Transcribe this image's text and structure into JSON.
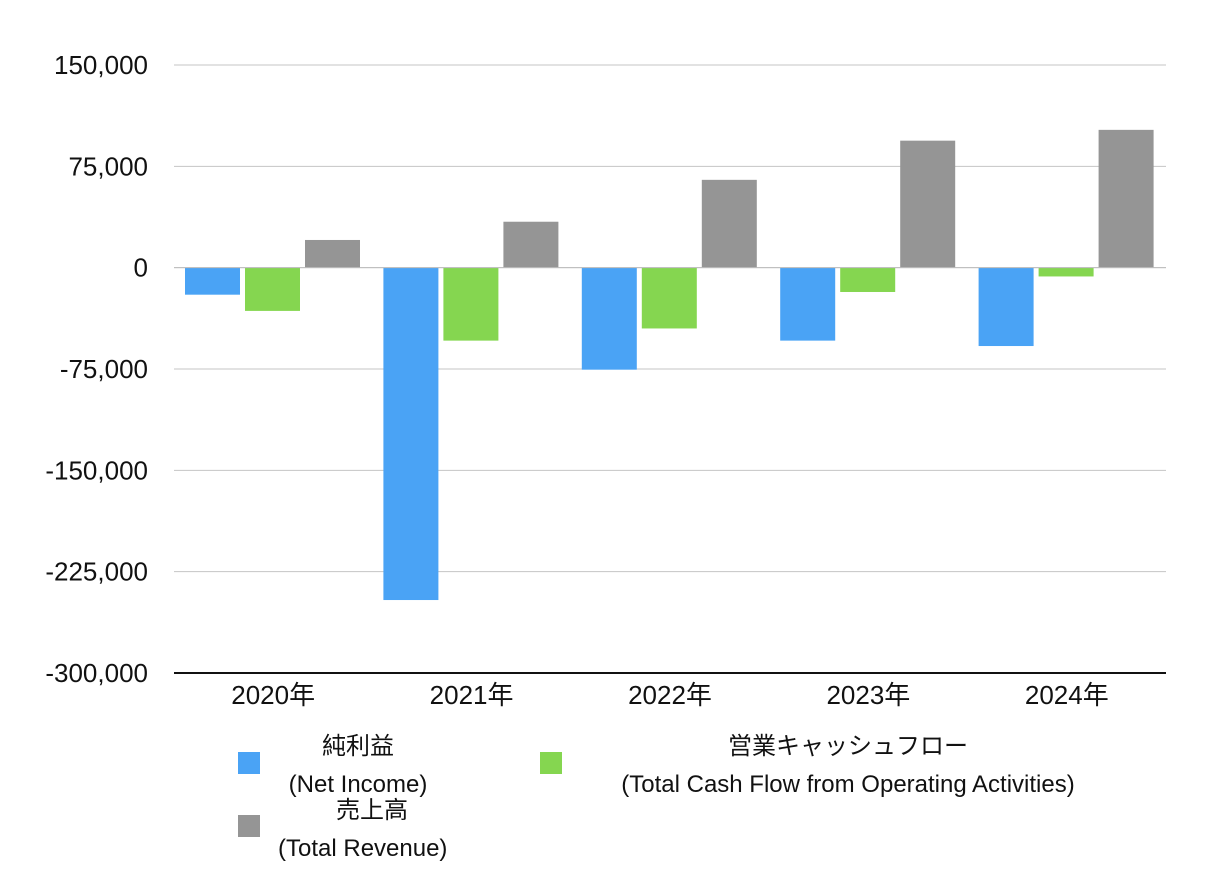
{
  "chart_data": {
    "type": "bar",
    "title": "",
    "xlabel": "",
    "ylabel": "",
    "categories": [
      "2020年",
      "2021年",
      "2022年",
      "2023年",
      "2024年"
    ],
    "ylim": [
      -300000,
      150000
    ],
    "yticks": [
      150000,
      75000,
      0,
      -75000,
      -150000,
      -225000,
      -300000
    ],
    "ytick_labels": [
      "150,000",
      "75,000",
      "0",
      "-75,000",
      "-150,000",
      "-225,000",
      "-300,000"
    ],
    "grid": true,
    "legend_position": "bottom",
    "series": [
      {
        "name": "純利益",
        "name_en": "(Net Income)",
        "color": "#4aa3f5",
        "values": [
          -20000,
          -246000,
          -75500,
          -54000,
          -58000
        ]
      },
      {
        "name": "営業キャッシュフロー",
        "name_en": "(Total Cash Flow from Operating Activities)",
        "color": "#85d650",
        "values": [
          -32000,
          -54000,
          -45000,
          -18000,
          -6500
        ]
      },
      {
        "name": "売上高",
        "name_en": "(Total Revenue)",
        "color": "#959595",
        "values": [
          20500,
          34000,
          65000,
          94000,
          102000
        ]
      }
    ]
  }
}
